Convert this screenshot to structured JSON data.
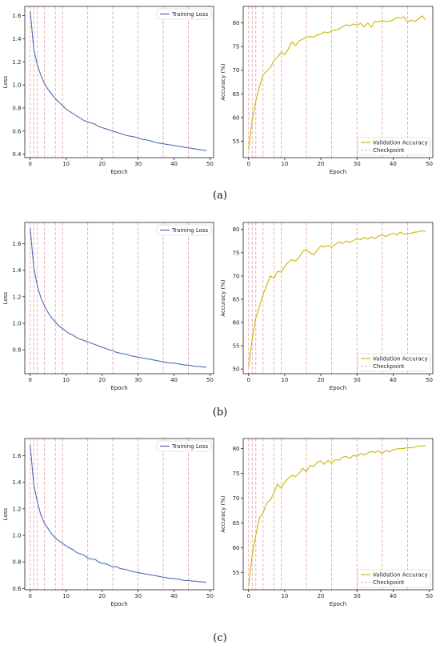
{
  "panels": [
    {
      "caption": "(a)",
      "caption_letter": "a"
    },
    {
      "caption": "(b)",
      "caption_letter": "b"
    },
    {
      "caption": "(c)",
      "caption_letter": "c"
    }
  ],
  "colors": {
    "loss": "#4c6db5",
    "acc": "#c9b800",
    "checkpoint": "#e8a0a0",
    "axis": "#222222"
  },
  "chart_data": [
    {
      "type": "line",
      "panel": "a",
      "title": "",
      "xlabel": "Epoch",
      "ylabel": "Loss",
      "xlim": [
        -1.5,
        51
      ],
      "ylim": [
        0.37,
        1.68
      ],
      "xticks": [
        0,
        10,
        20,
        30,
        40,
        50
      ],
      "yticks": [
        0.4,
        0.6,
        0.8,
        1.0,
        1.2,
        1.4,
        1.6
      ],
      "checkpoints": [
        0,
        1,
        2,
        4,
        7,
        9,
        16,
        23,
        30,
        37,
        44
      ],
      "legend_position": "top-right",
      "series": [
        {
          "name": "Training Loss",
          "x": [
            0,
            1,
            2,
            3,
            4,
            5,
            6,
            7,
            8,
            9,
            10,
            11,
            12,
            13,
            14,
            15,
            16,
            17,
            18,
            19,
            20,
            21,
            22,
            23,
            24,
            25,
            26,
            27,
            28,
            29,
            30,
            31,
            32,
            33,
            34,
            35,
            36,
            37,
            38,
            39,
            40,
            41,
            42,
            43,
            44,
            45,
            46,
            47,
            48,
            49
          ],
          "values": [
            1.64,
            1.31,
            1.17,
            1.08,
            1.01,
            0.96,
            0.92,
            0.88,
            0.85,
            0.82,
            0.79,
            0.77,
            0.75,
            0.73,
            0.71,
            0.69,
            0.68,
            0.67,
            0.66,
            0.64,
            0.63,
            0.62,
            0.61,
            0.6,
            0.59,
            0.58,
            0.57,
            0.56,
            0.555,
            0.55,
            0.54,
            0.53,
            0.525,
            0.52,
            0.51,
            0.5,
            0.495,
            0.49,
            0.485,
            0.48,
            0.475,
            0.47,
            0.465,
            0.46,
            0.455,
            0.45,
            0.445,
            0.44,
            0.435,
            0.43
          ]
        }
      ]
    },
    {
      "type": "line",
      "panel": "a",
      "title": "",
      "xlabel": "Epoch",
      "ylabel": "Accuracy (%)",
      "xlim": [
        -1.5,
        51
      ],
      "ylim": [
        51.5,
        83.5
      ],
      "xticks": [
        0,
        10,
        20,
        30,
        40,
        50
      ],
      "yticks": [
        55,
        60,
        65,
        70,
        75,
        80
      ],
      "checkpoints": [
        0,
        1,
        2,
        4,
        7,
        9,
        16,
        23,
        30,
        37,
        44
      ],
      "legend_position": "bottom-right",
      "series": [
        {
          "name": "Validation Accuracy",
          "x": [
            0,
            1,
            2,
            3,
            4,
            5,
            6,
            7,
            8,
            9,
            10,
            11,
            12,
            13,
            14,
            15,
            16,
            17,
            18,
            19,
            20,
            21,
            22,
            23,
            24,
            25,
            26,
            27,
            28,
            29,
            30,
            31,
            32,
            33,
            34,
            35,
            36,
            37,
            38,
            39,
            40,
            41,
            42,
            43,
            44,
            45,
            46,
            47,
            48,
            49
          ],
          "values": [
            53.2,
            59.5,
            63.5,
            66.5,
            69.0,
            69.8,
            70.5,
            72.0,
            72.8,
            73.8,
            73.3,
            74.5,
            76.0,
            75.2,
            76.2,
            76.6,
            77.0,
            77.1,
            77.0,
            77.5,
            77.6,
            78.1,
            77.9,
            78.3,
            78.5,
            78.7,
            79.2,
            79.6,
            79.4,
            79.8,
            79.5,
            79.9,
            79.2,
            80.0,
            79.1,
            80.4,
            80.2,
            80.5,
            80.3,
            80.4,
            80.6,
            81.2,
            81.0,
            81.3,
            80.2,
            80.6,
            80.3,
            80.8,
            81.5,
            80.7
          ]
        },
        {
          "name": "Checkpoint"
        }
      ]
    },
    {
      "type": "line",
      "panel": "b",
      "title": "",
      "xlabel": "Epoch",
      "ylabel": "Loss",
      "xlim": [
        -1.5,
        51
      ],
      "ylim": [
        0.62,
        1.76
      ],
      "xticks": [
        0,
        10,
        20,
        30,
        40,
        50
      ],
      "yticks": [
        0.8,
        1.0,
        1.2,
        1.4,
        1.6
      ],
      "checkpoints": [
        0,
        1,
        2,
        4,
        7,
        9,
        16,
        23,
        30,
        37,
        44
      ],
      "legend_position": "top-right",
      "series": [
        {
          "name": "Training Loss",
          "x": [
            0,
            1,
            2,
            3,
            4,
            5,
            6,
            7,
            8,
            9,
            10,
            11,
            12,
            13,
            14,
            15,
            16,
            17,
            18,
            19,
            20,
            21,
            22,
            23,
            24,
            25,
            26,
            27,
            28,
            29,
            30,
            31,
            32,
            33,
            34,
            35,
            36,
            37,
            38,
            39,
            40,
            41,
            42,
            43,
            44,
            45,
            46,
            47,
            48,
            49
          ],
          "values": [
            1.72,
            1.42,
            1.28,
            1.19,
            1.13,
            1.08,
            1.04,
            1.01,
            0.98,
            0.96,
            0.94,
            0.92,
            0.91,
            0.89,
            0.88,
            0.87,
            0.86,
            0.85,
            0.84,
            0.83,
            0.82,
            0.81,
            0.8,
            0.795,
            0.78,
            0.775,
            0.77,
            0.765,
            0.755,
            0.75,
            0.745,
            0.74,
            0.735,
            0.73,
            0.725,
            0.72,
            0.715,
            0.71,
            0.705,
            0.7,
            0.7,
            0.695,
            0.69,
            0.685,
            0.685,
            0.68,
            0.675,
            0.675,
            0.67,
            0.67
          ]
        }
      ]
    },
    {
      "type": "line",
      "panel": "b",
      "title": "",
      "xlabel": "Epoch",
      "ylabel": "Accuracy (%)",
      "xlim": [
        -1.5,
        51
      ],
      "ylim": [
        49.0,
        81.5
      ],
      "xticks": [
        0,
        10,
        20,
        30,
        40,
        50
      ],
      "yticks": [
        50,
        55,
        60,
        65,
        70,
        75,
        80
      ],
      "checkpoints": [
        0,
        1,
        2,
        4,
        7,
        9,
        16,
        23,
        30,
        37,
        44
      ],
      "legend_position": "bottom-right",
      "series": [
        {
          "name": "Validation Accuracy",
          "x": [
            0,
            1,
            2,
            3,
            4,
            5,
            6,
            7,
            8,
            9,
            10,
            11,
            12,
            13,
            14,
            15,
            16,
            17,
            18,
            19,
            20,
            21,
            22,
            23,
            24,
            25,
            26,
            27,
            28,
            29,
            30,
            31,
            32,
            33,
            34,
            35,
            36,
            37,
            38,
            39,
            40,
            41,
            42,
            43,
            44,
            45,
            46,
            47,
            48,
            49
          ],
          "values": [
            50.5,
            56.5,
            61.0,
            63.5,
            66.0,
            68.0,
            70.0,
            69.5,
            71.0,
            70.8,
            72.0,
            73.0,
            73.5,
            73.2,
            74.0,
            75.3,
            75.6,
            75.0,
            74.6,
            75.5,
            76.5,
            76.2,
            76.6,
            76.2,
            76.8,
            77.3,
            77.0,
            77.5,
            77.2,
            77.6,
            78.0,
            77.8,
            78.3,
            77.9,
            78.4,
            78.0,
            78.6,
            78.8,
            78.5,
            78.9,
            79.2,
            78.8,
            79.4,
            79.0,
            79.1,
            79.2,
            79.4,
            79.5,
            79.7,
            79.6
          ]
        },
        {
          "name": "Checkpoint"
        }
      ]
    },
    {
      "type": "line",
      "panel": "c",
      "title": "",
      "xlabel": "Epoch",
      "ylabel": "Loss",
      "xlim": [
        -1.5,
        51
      ],
      "ylim": [
        0.59,
        1.73
      ],
      "xticks": [
        0,
        10,
        20,
        30,
        40,
        50
      ],
      "yticks": [
        0.6,
        0.8,
        1.0,
        1.2,
        1.4,
        1.6
      ],
      "checkpoints": [
        0,
        1,
        2,
        4,
        7,
        9,
        16,
        23,
        30,
        37,
        44
      ],
      "legend_position": "top-right",
      "series": [
        {
          "name": "Training Loss",
          "x": [
            0,
            1,
            2,
            3,
            4,
            5,
            6,
            7,
            8,
            9,
            10,
            11,
            12,
            13,
            14,
            15,
            16,
            17,
            18,
            19,
            20,
            21,
            22,
            23,
            24,
            25,
            26,
            27,
            28,
            29,
            30,
            31,
            32,
            33,
            34,
            35,
            36,
            37,
            38,
            39,
            40,
            41,
            42,
            43,
            44,
            45,
            46,
            47,
            48,
            49
          ],
          "values": [
            1.68,
            1.38,
            1.25,
            1.15,
            1.09,
            1.05,
            1.01,
            0.98,
            0.96,
            0.94,
            0.92,
            0.905,
            0.89,
            0.87,
            0.86,
            0.85,
            0.83,
            0.82,
            0.82,
            0.8,
            0.79,
            0.785,
            0.775,
            0.76,
            0.765,
            0.75,
            0.745,
            0.74,
            0.73,
            0.725,
            0.72,
            0.715,
            0.71,
            0.705,
            0.7,
            0.695,
            0.69,
            0.685,
            0.68,
            0.675,
            0.675,
            0.67,
            0.665,
            0.66,
            0.66,
            0.655,
            0.655,
            0.65,
            0.65,
            0.645
          ]
        }
      ]
    },
    {
      "type": "line",
      "panel": "c",
      "title": "",
      "xlabel": "Epoch",
      "ylabel": "Accuracy (%)",
      "xlim": [
        -1.5,
        51
      ],
      "ylim": [
        51.5,
        82.0
      ],
      "xticks": [
        0,
        10,
        20,
        30,
        40,
        50
      ],
      "yticks": [
        55,
        60,
        65,
        70,
        75,
        80
      ],
      "checkpoints": [
        0,
        1,
        2,
        4,
        7,
        9,
        16,
        23,
        30,
        37,
        44
      ],
      "legend_position": "bottom-right",
      "series": [
        {
          "name": "Validation Accuracy",
          "x": [
            0,
            1,
            2,
            3,
            4,
            5,
            6,
            7,
            8,
            9,
            10,
            11,
            12,
            13,
            14,
            15,
            16,
            17,
            18,
            19,
            20,
            21,
            22,
            23,
            24,
            25,
            26,
            27,
            28,
            29,
            30,
            31,
            32,
            33,
            34,
            35,
            36,
            37,
            38,
            39,
            40,
            41,
            42,
            43,
            44,
            45,
            46,
            47,
            48,
            49
          ],
          "values": [
            52.2,
            58.5,
            62.5,
            66.0,
            67.0,
            69.0,
            69.6,
            71.0,
            72.8,
            72.0,
            73.2,
            74.0,
            74.6,
            74.3,
            75.0,
            76.0,
            75.3,
            76.6,
            76.4,
            77.2,
            77.5,
            76.8,
            77.6,
            77.0,
            77.8,
            77.6,
            78.2,
            78.4,
            78.0,
            78.6,
            78.4,
            79.0,
            78.7,
            79.1,
            79.4,
            79.2,
            79.5,
            79.0,
            79.6,
            79.3,
            79.7,
            79.9,
            80.0,
            80.0,
            80.2,
            80.1,
            80.3,
            80.5,
            80.5,
            80.6
          ]
        },
        {
          "name": "Checkpoint"
        }
      ]
    }
  ]
}
